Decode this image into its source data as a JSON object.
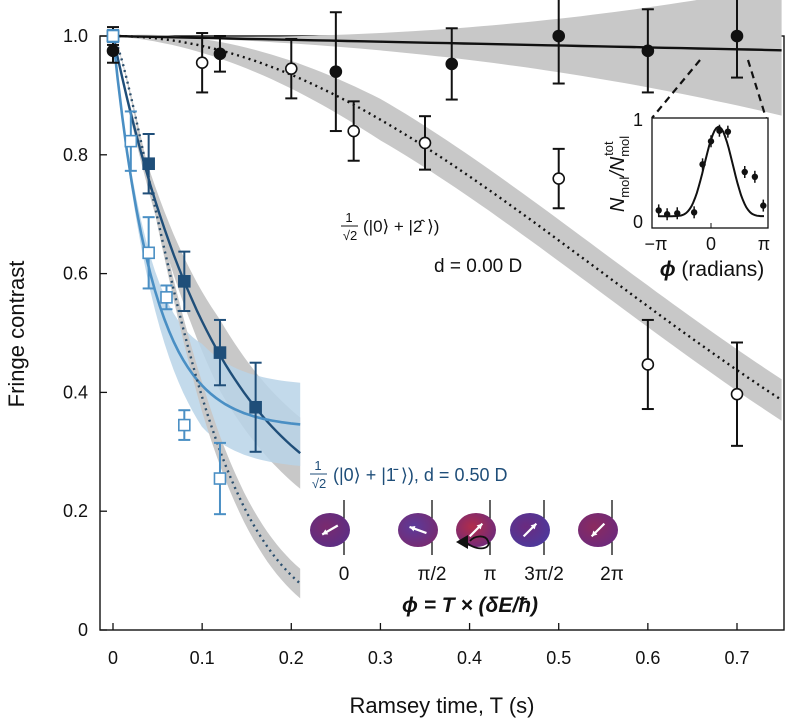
{
  "chart_data": {
    "type": "scatter",
    "xlabel": "Ramsey time, T (s)",
    "ylabel": "Fringe contrast",
    "xlim": [
      -0.015,
      0.75
    ],
    "ylim": [
      0,
      1.0
    ],
    "x_ticks": [
      "0",
      "0.1",
      "0.2",
      "0.3",
      "0.4",
      "0.5",
      "0.6",
      "0.7"
    ],
    "x_tick_values": [
      0,
      0.1,
      0.2,
      0.3,
      0.4,
      0.5,
      0.6,
      0.7
    ],
    "y_ticks": [
      "0",
      "0.2",
      "0.4",
      "0.6",
      "0.8",
      "1.0"
    ],
    "y_tick_values": [
      0,
      0.2,
      0.4,
      0.6,
      0.8,
      1.0
    ],
    "colors": {
      "black": "#111111",
      "dark_blue": "#1f4e79",
      "light_blue": "#4a8fc4",
      "band_grey": "#c8c8c8",
      "band_blue": "#b9d3e8"
    },
    "series": [
      {
        "name": "filled circles (black)",
        "marker": "filled-circle",
        "x": [
          0,
          0.12,
          0.25,
          0.38,
          0.5,
          0.6,
          0.7
        ],
        "y": [
          0.975,
          0.97,
          0.94,
          0.953,
          1.0,
          0.975,
          1.0
        ],
        "err": [
          0.02,
          0.03,
          0.1,
          0.06,
          0.08,
          0.07,
          0.07
        ]
      },
      {
        "name": "open circles (black)",
        "marker": "open-circle",
        "x": [
          0,
          0.1,
          0.2,
          0.27,
          0.35,
          0.5,
          0.6,
          0.7
        ],
        "y": [
          1.0,
          0.955,
          0.945,
          0.84,
          0.82,
          0.76,
          0.447,
          0.397
        ],
        "err": [
          0.015,
          0.05,
          0.05,
          0.05,
          0.045,
          0.05,
          0.075,
          0.087
        ]
      },
      {
        "name": "filled squares (dark blue)",
        "marker": "filled-square",
        "x": [
          0,
          0.04,
          0.08,
          0.12,
          0.16
        ],
        "y": [
          1.0,
          0.785,
          0.587,
          0.467,
          0.375
        ],
        "err": [
          0.01,
          0.05,
          0.05,
          0.055,
          0.075
        ]
      },
      {
        "name": "open squares (light blue)",
        "marker": "open-square",
        "x": [
          0,
          0.02,
          0.04,
          0.06,
          0.08,
          0.12
        ],
        "y": [
          1.0,
          0.823,
          0.635,
          0.56,
          0.345,
          0.255
        ],
        "err": [
          0.01,
          0.05,
          0.06,
          0.02,
          0.025,
          0.06
        ]
      }
    ],
    "fits": [
      {
        "name": "black solid fit",
        "style": "solid",
        "color": "#111111",
        "x_range": [
          0,
          0.75
        ]
      },
      {
        "name": "black dotted fit",
        "style": "dotted",
        "color": "#111111",
        "x_range": [
          0,
          0.75
        ]
      },
      {
        "name": "dark blue solid fit",
        "style": "solid",
        "color": "#1f4e79",
        "x_range": [
          0,
          0.21
        ]
      },
      {
        "name": "light blue solid fit",
        "style": "solid",
        "color": "#4a8fc4",
        "x_range": [
          0,
          0.21
        ]
      },
      {
        "name": "blue dotted fit",
        "style": "dotted",
        "color": "#1f4e79",
        "x_range": [
          0,
          0.21
        ]
      }
    ],
    "annotations": {
      "state_label_black_frac": "1",
      "state_label_black_sqrt": "√2",
      "state_label_black_ket": "(|0⟩ + |2̂ ⟩)",
      "dipole_black": "d = 0.00 D",
      "state_label_blue_frac": "1",
      "state_label_blue_sqrt": "√2",
      "state_label_blue_ket": "(|0⟩ + |1̄ ⟩), d = 0.50 D",
      "phase_labels": [
        "0",
        "π/2",
        "π",
        "3π/2",
        "2π"
      ],
      "phase_formula": "ϕ = T × (δE/ħ)"
    },
    "inset": {
      "type": "scatter",
      "xlabel": "ϕ (radians)",
      "ylabel": "Nmol/Nmol tot",
      "ylabel_num": "N",
      "ylabel_num_sub": "mol",
      "ylabel_slash": "/N",
      "ylabel_den_sub": "mol",
      "ylabel_den_sup": "tot",
      "x_ticks": [
        "−π",
        "0",
        "π"
      ],
      "y_ticks": [
        "0",
        "1"
      ],
      "x": [
        -3.1,
        -2.6,
        -2.0,
        -1.0,
        -0.5,
        0.0,
        0.5,
        1.0,
        2.0,
        2.6,
        3.1
      ],
      "y": [
        0.1,
        0.06,
        0.07,
        0.08,
        0.58,
        0.82,
        0.93,
        0.92,
        0.5,
        0.45,
        0.15
      ]
    }
  }
}
